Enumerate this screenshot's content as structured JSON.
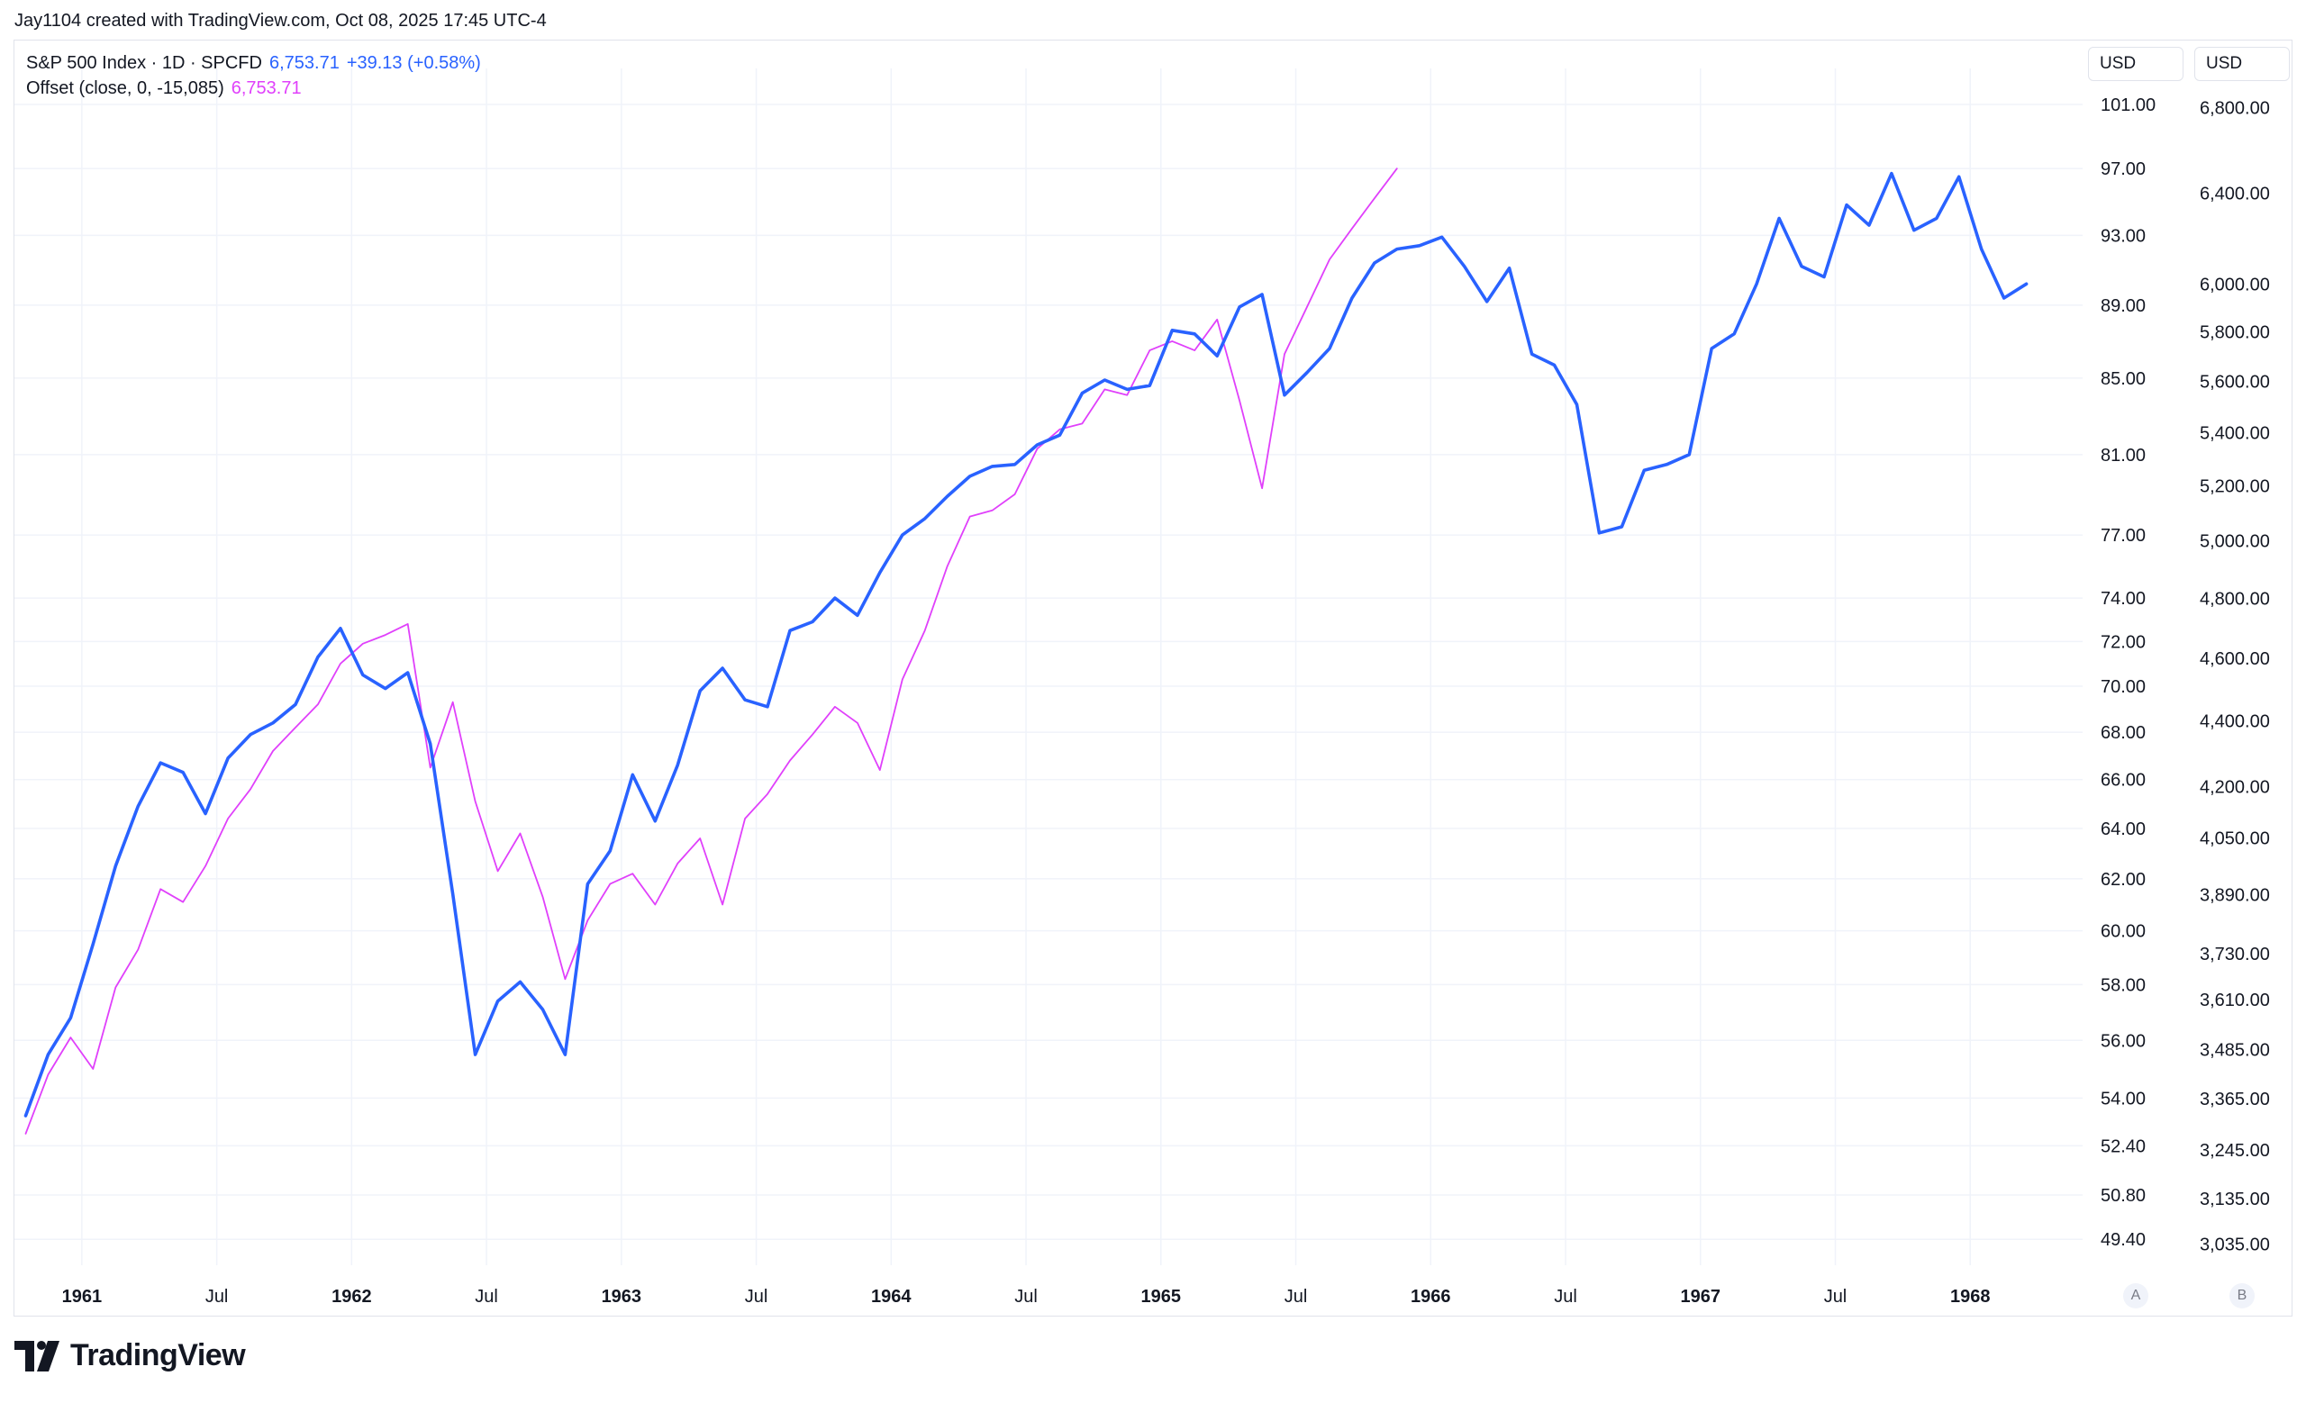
{
  "header": {
    "created_line": "Jay1104 created with TradingView.com, Oct 08, 2025 17:45 UTC-4"
  },
  "legend": {
    "main_name": "S&P 500 Index · 1D · SPCFD",
    "main_price": "6,753.71",
    "main_change": "+39.13 (+0.58%)",
    "offset_name": "Offset (close, 0, -15,085)",
    "offset_price": "6,753.71"
  },
  "scales": {
    "left_currency": "USD",
    "right_currency": "USD",
    "left_scale_label": "A",
    "right_scale_label": "B"
  },
  "brand": {
    "name": "TradingView"
  },
  "colors": {
    "main": "#2962ff",
    "offset": "#e040fb",
    "grid": "#f0f3fa",
    "axis_text": "#131722"
  },
  "chart_data": {
    "type": "line",
    "x_ticks": [
      {
        "label": "1961",
        "bold": true,
        "date": "1961-01"
      },
      {
        "label": "Jul",
        "bold": false,
        "date": "1961-07"
      },
      {
        "label": "1962",
        "bold": true,
        "date": "1962-01"
      },
      {
        "label": "Jul",
        "bold": false,
        "date": "1962-07"
      },
      {
        "label": "1963",
        "bold": true,
        "date": "1963-01"
      },
      {
        "label": "Jul",
        "bold": false,
        "date": "1963-07"
      },
      {
        "label": "1964",
        "bold": true,
        "date": "1964-01"
      },
      {
        "label": "Jul",
        "bold": false,
        "date": "1964-07"
      },
      {
        "label": "1965",
        "bold": true,
        "date": "1965-01"
      },
      {
        "label": "Jul",
        "bold": false,
        "date": "1965-07"
      },
      {
        "label": "1966",
        "bold": true,
        "date": "1966-01"
      },
      {
        "label": "Jul",
        "bold": false,
        "date": "1966-07"
      },
      {
        "label": "1967",
        "bold": true,
        "date": "1967-01"
      },
      {
        "label": "Jul",
        "bold": false,
        "date": "1967-07"
      },
      {
        "label": "1968",
        "bold": true,
        "date": "1968-01"
      }
    ],
    "x_range": [
      "1960-10",
      "1968-06"
    ],
    "left_axis": {
      "scale": "log",
      "range": [
        48.6,
        102.5
      ],
      "ticks": [
        "101.00",
        "97.00",
        "93.00",
        "89.00",
        "85.00",
        "81.00",
        "77.00",
        "74.00",
        "72.00",
        "70.00",
        "68.00",
        "66.00",
        "64.00",
        "62.00",
        "60.00",
        "58.00",
        "56.00",
        "54.00",
        "52.40",
        "50.80",
        "49.40"
      ]
    },
    "right_axis": {
      "scale": "log",
      "range": [
        2990,
        6930
      ],
      "ticks": [
        "6,800.00",
        "6,400.00",
        "6,000.00",
        "5,800.00",
        "5,600.00",
        "5,400.00",
        "5,200.00",
        "5,000.00",
        "4,800.00",
        "4,600.00",
        "4,400.00",
        "4,200.00",
        "4,050.00",
        "3,890.00",
        "3,730.00",
        "3,610.00",
        "3,485.00",
        "3,365.00",
        "3,245.00",
        "3,135.00",
        "3,035.00"
      ]
    },
    "grid": true,
    "series": [
      {
        "axis": "left",
        "x": [
          "1960-10",
          "1960-11",
          "1960-12",
          "1961-01",
          "1961-02",
          "1961-03",
          "1961-04",
          "1961-05",
          "1961-06",
          "1961-07",
          "1961-08",
          "1961-09",
          "1961-10",
          "1961-11",
          "1961-12",
          "1962-01",
          "1962-02",
          "1962-03",
          "1962-04",
          "1962-05",
          "1962-06",
          "1962-07",
          "1962-08",
          "1962-09",
          "1962-10",
          "1962-11",
          "1962-12",
          "1963-01",
          "1963-02",
          "1963-03",
          "1963-04",
          "1963-05",
          "1963-06",
          "1963-07",
          "1963-08",
          "1963-09",
          "1963-10",
          "1963-11",
          "1963-12",
          "1964-01",
          "1964-02",
          "1964-03",
          "1964-04",
          "1964-05",
          "1964-06",
          "1964-07",
          "1964-08",
          "1964-09",
          "1964-10",
          "1964-11",
          "1964-12",
          "1965-01",
          "1965-02",
          "1965-03",
          "1965-04",
          "1965-05",
          "1965-06",
          "1965-07",
          "1965-08",
          "1965-09",
          "1965-10",
          "1965-11",
          "1965-12",
          "1966-01",
          "1966-02",
          "1966-03",
          "1966-04",
          "1966-05",
          "1966-06",
          "1966-07",
          "1966-08",
          "1966-09",
          "1966-10",
          "1966-11",
          "1966-12",
          "1967-01",
          "1967-02",
          "1967-03",
          "1967-04",
          "1967-05",
          "1967-06",
          "1967-07",
          "1967-08",
          "1967-09",
          "1967-10",
          "1967-11",
          "1967-12",
          "1968-01",
          "1968-02",
          "1968-03"
        ],
        "values": [
          53.4,
          55.5,
          56.8,
          59.5,
          62.5,
          64.9,
          66.7,
          66.3,
          64.6,
          66.9,
          67.9,
          68.4,
          69.2,
          71.3,
          72.6,
          70.5,
          69.9,
          70.6,
          67.5,
          61.4,
          55.5,
          57.4,
          58.1,
          57.1,
          55.5,
          61.8,
          63.1,
          66.2,
          64.3,
          66.6,
          69.8,
          70.8,
          69.4,
          69.1,
          72.5,
          72.9,
          74.0,
          73.2,
          75.2,
          77.0,
          77.8,
          78.9,
          79.9,
          80.4,
          80.5,
          81.5,
          82.0,
          84.2,
          84.9,
          84.4,
          84.6,
          87.6,
          87.4,
          86.2,
          88.9,
          89.6,
          84.1,
          85.3,
          86.6,
          89.4,
          91.4,
          92.2,
          92.4,
          92.9,
          91.2,
          89.2,
          91.1,
          86.3,
          85.7,
          83.6,
          77.1,
          77.4,
          80.2,
          80.5,
          81.0,
          86.6,
          87.4,
          90.2,
          94.0,
          91.2,
          90.6,
          94.8,
          93.6,
          96.7,
          93.3,
          94.0,
          96.5,
          92.2,
          89.4,
          90.2
        ]
      },
      {
        "axis": "left",
        "x": [
          "1960-10",
          "1960-11",
          "1960-12",
          "1961-01",
          "1961-02",
          "1961-03",
          "1961-04",
          "1961-05",
          "1961-06",
          "1961-07",
          "1961-08",
          "1961-09",
          "1961-10",
          "1961-11",
          "1961-12",
          "1962-01",
          "1962-02",
          "1962-03",
          "1962-04",
          "1962-05",
          "1962-06",
          "1962-07",
          "1962-08",
          "1962-09",
          "1962-10",
          "1962-11",
          "1962-12",
          "1963-01",
          "1963-02",
          "1963-03",
          "1963-04",
          "1963-05",
          "1963-06",
          "1963-07",
          "1963-08",
          "1963-09",
          "1963-10",
          "1963-11",
          "1963-12",
          "1964-01",
          "1964-02",
          "1964-03",
          "1964-04",
          "1964-05",
          "1964-06",
          "1964-07",
          "1964-08",
          "1964-09",
          "1964-10",
          "1964-11",
          "1964-12",
          "1965-01",
          "1965-02",
          "1965-03",
          "1965-04",
          "1965-05",
          "1965-06",
          "1965-07",
          "1965-08",
          "1965-09",
          "1965-10",
          "1965-11"
        ],
        "values": [
          52.8,
          54.8,
          56.1,
          55.0,
          57.9,
          59.3,
          61.6,
          61.1,
          62.5,
          64.4,
          65.6,
          67.2,
          68.2,
          69.2,
          71.0,
          71.9,
          72.3,
          72.8,
          66.5,
          69.3,
          65.1,
          62.3,
          63.8,
          61.3,
          58.2,
          60.4,
          61.8,
          62.2,
          61.0,
          62.6,
          63.6,
          61.0,
          64.4,
          65.4,
          66.8,
          67.9,
          69.1,
          68.4,
          66.4,
          70.3,
          72.5,
          75.5,
          77.9,
          78.2,
          79.0,
          81.3,
          82.3,
          82.6,
          84.4,
          84.1,
          86.5,
          87.0,
          86.5,
          88.2,
          83.8,
          79.3,
          86.3,
          88.9,
          91.6,
          93.4,
          95.2,
          97.0
        ]
      }
    ]
  }
}
